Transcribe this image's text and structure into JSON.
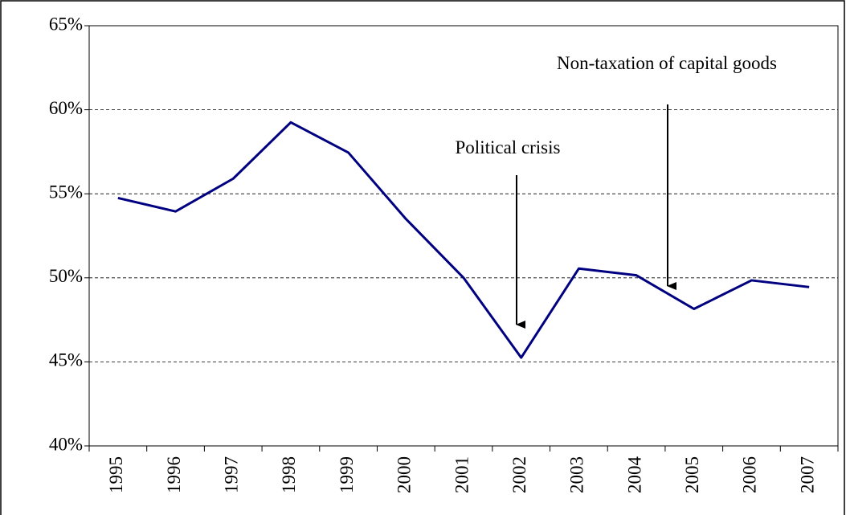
{
  "chart_data": {
    "type": "line",
    "categories": [
      "1995",
      "1996",
      "1997",
      "1998",
      "1999",
      "2000",
      "2001",
      "2002",
      "2003",
      "2004",
      "2005",
      "2006",
      "2007"
    ],
    "series": [
      {
        "color": "#000080",
        "values": [
          54.75,
          53.95,
          55.9,
          59.25,
          57.45,
          53.5,
          50.0,
          45.25,
          50.55,
          50.15,
          48.15,
          49.85,
          49.45
        ]
      }
    ],
    "ylim": [
      40,
      65
    ],
    "yticks": [
      {
        "value": 40,
        "label": "40%"
      },
      {
        "value": 45,
        "label": "45%"
      },
      {
        "value": 50,
        "label": "50%"
      },
      {
        "value": 55,
        "label": "55%"
      },
      {
        "value": 60,
        "label": "60%"
      },
      {
        "value": 65,
        "label": "65%"
      }
    ],
    "grid": true,
    "annotations": [
      "Political crisis",
      "Non-taxation of capital goods"
    ]
  }
}
